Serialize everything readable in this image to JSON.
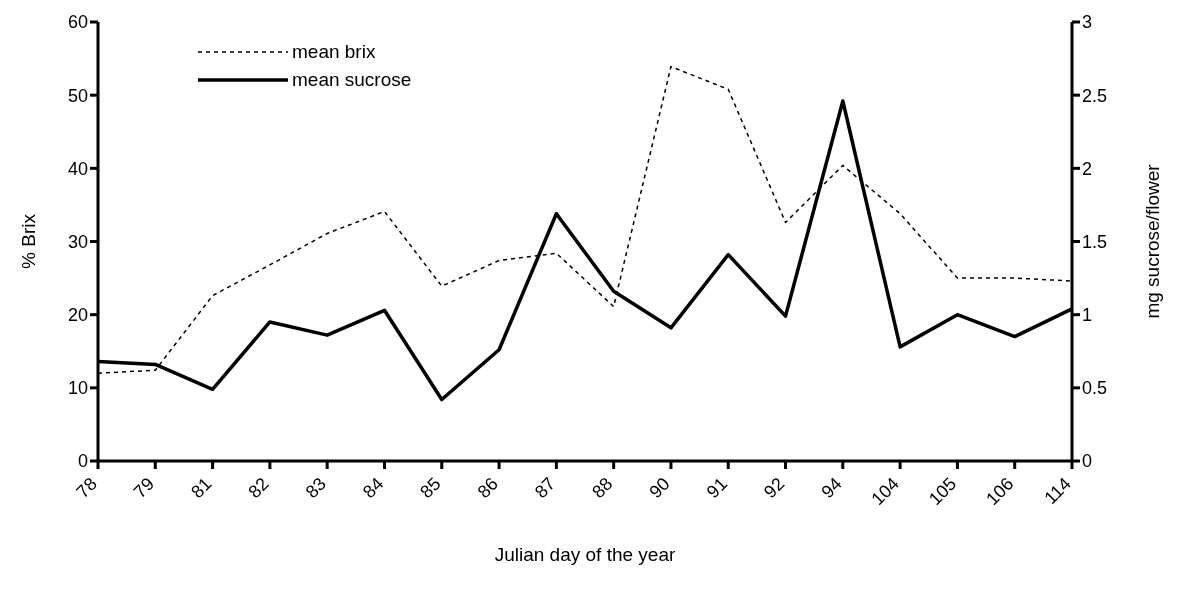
{
  "chart_data": {
    "type": "line",
    "xlabel": "Julian day of the year",
    "ylabel": "%  Brix",
    "y2label": "mg sucrose/flower",
    "categories": [
      "78",
      "79",
      "81",
      "82",
      "83",
      "84",
      "85",
      "86",
      "87",
      "88",
      "90",
      "91",
      "92",
      "94",
      "104",
      "105",
      "106",
      "114"
    ],
    "series": [
      {
        "name": "mean brix",
        "color": "#000000",
        "line_style": "dotted",
        "values": [
          12.0,
          12.4,
          22.6,
          26.8,
          31.1,
          34.1,
          23.9,
          27.4,
          28.4,
          21.1,
          53.9,
          50.8,
          32.6,
          40.4,
          33.8,
          25.0,
          25.0,
          24.6
        ]
      },
      {
        "name": "mean sucrose",
        "color": "#000000",
        "line_style": "solid",
        "axis": "y2",
        "values": [
          0.68,
          0.66,
          0.49,
          0.95,
          0.86,
          1.03,
          0.42,
          0.76,
          1.69,
          1.16,
          0.91,
          1.41,
          0.99,
          2.46,
          0.78,
          1.0,
          0.85,
          1.04
        ]
      }
    ],
    "ylim": [
      0,
      60
    ],
    "yticks": [
      0,
      10,
      20,
      30,
      40,
      50,
      60
    ],
    "y2lim": [
      0,
      3
    ],
    "y2ticks": [
      0,
      0.5,
      1,
      1.5,
      2,
      2.5,
      3
    ],
    "grid": false,
    "legend": "top left",
    "marker": "none"
  }
}
